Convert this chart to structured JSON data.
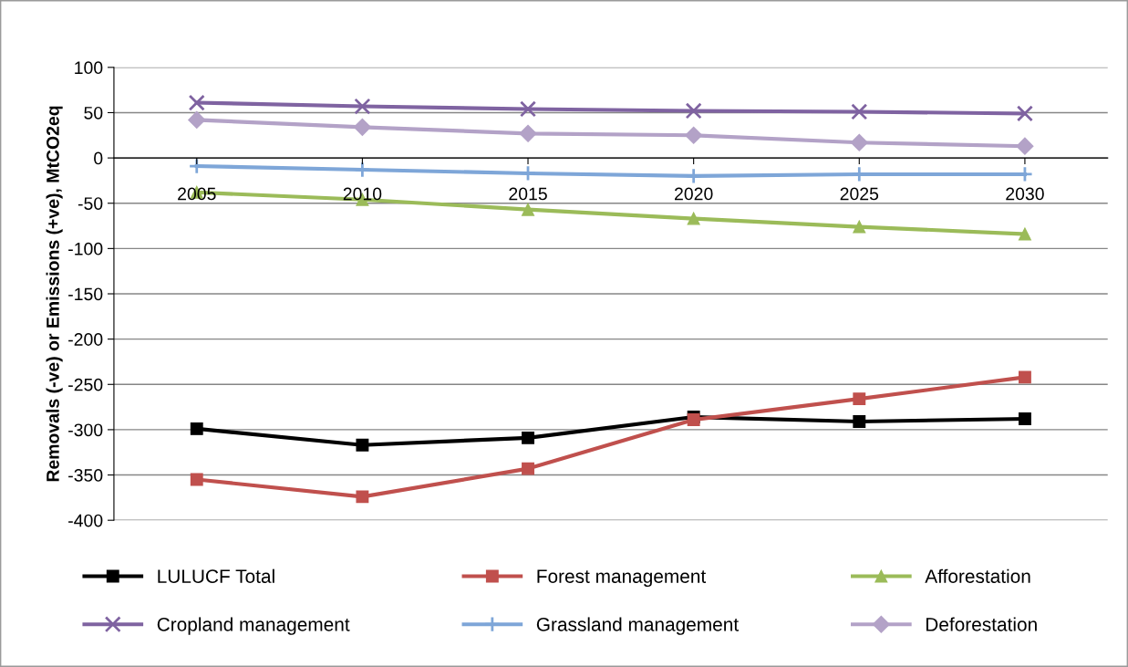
{
  "chart_data": {
    "type": "line",
    "ylabel": "Removals (-ve) or Emissions (+ve), MtCO2eq",
    "categories": [
      "2005",
      "2010",
      "2015",
      "2020",
      "2025",
      "2030"
    ],
    "ylim": [
      -400,
      100
    ],
    "yticks": [
      -400,
      -350,
      -300,
      -250,
      -200,
      -150,
      -100,
      -50,
      0,
      50,
      100
    ],
    "grid": "y",
    "legend": "bottom",
    "line_style": "solid",
    "series": [
      {
        "name": "LULUCF Total",
        "color": "#000000",
        "marker": "square",
        "values": [
          -299,
          -317,
          -309,
          -286,
          -291,
          -288
        ]
      },
      {
        "name": "Forest management",
        "color": "#c0504d",
        "marker": "square",
        "values": [
          -355,
          -374,
          -343,
          -289,
          -266,
          -242
        ]
      },
      {
        "name": "Afforestation",
        "color": "#9bbb59",
        "marker": "triangle",
        "values": [
          -38,
          -46,
          -57,
          -67,
          -76,
          -84
        ]
      },
      {
        "name": "Cropland management",
        "color": "#7f63a1",
        "marker": "cross",
        "values": [
          61,
          57,
          54,
          52,
          51,
          49
        ]
      },
      {
        "name": "Grassland management",
        "color": "#7ea6d8",
        "marker": "plus",
        "values": [
          -9,
          -13,
          -17,
          -20,
          -18,
          -18
        ]
      },
      {
        "name": "Deforestation",
        "color": "#b3a2c7",
        "marker": "diamond",
        "values": [
          42,
          34,
          27,
          25,
          17,
          13
        ]
      }
    ]
  }
}
